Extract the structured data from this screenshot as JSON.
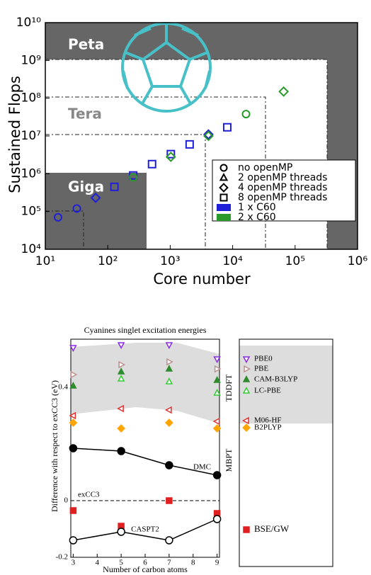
{
  "chart_data": [
    {
      "type": "scatter",
      "xscale": "log",
      "yscale": "log",
      "x_label": "Core number",
      "y_label": "Sustained Flops",
      "xlim": [
        10,
        1000000
      ],
      "ylim": [
        10000,
        10000000000
      ],
      "xticks": [
        {
          "value": 10,
          "label": "10¹"
        },
        {
          "value": 100,
          "label": "10²"
        },
        {
          "value": 1000,
          "label": "10³"
        },
        {
          "value": 10000,
          "label": "10⁴"
        },
        {
          "value": 100000,
          "label": "10⁵"
        },
        {
          "value": 1000000,
          "label": "10⁶"
        }
      ],
      "yticks": [
        {
          "value": 10000,
          "label": "10⁴"
        },
        {
          "value": 100000,
          "label": "10⁵"
        },
        {
          "value": 1000000,
          "label": "10⁶"
        },
        {
          "value": 10000000,
          "label": "10⁷"
        },
        {
          "value": 100000000,
          "label": "10⁸"
        },
        {
          "value": 1000000000,
          "label": "10⁹"
        },
        {
          "value": 10000000000,
          "label": "10¹⁰"
        }
      ],
      "annotations": [
        "Peta",
        "Tera",
        "Giga"
      ],
      "marker_legend": [
        {
          "label": "no openMP",
          "marker": "circle"
        },
        {
          "label": "2 openMP threads",
          "marker": "triangle"
        },
        {
          "label": "4 openMP threads",
          "marker": "diamond"
        },
        {
          "label": "8 openMP threads",
          "marker": "square"
        }
      ],
      "series": [
        {
          "name": "1 x C60",
          "color": "#1f1fd8",
          "x": [
            16,
            32,
            64,
            128,
            256,
            512,
            1024,
            2048,
            4096,
            8192
          ],
          "values": [
            70000,
            120000,
            230000,
            450000,
            900000,
            1800000,
            3300000,
            6000000,
            11000000,
            17000000
          ],
          "markers": [
            "circle",
            "circle",
            "diamond",
            "square",
            "square",
            "square",
            "square",
            "square",
            "diamond",
            "square"
          ]
        },
        {
          "name": "2 x C60",
          "color": "#2a9a2a",
          "x": [
            256,
            1024,
            4096,
            16384,
            65536
          ],
          "values": [
            800000,
            2800000,
            10000000,
            38000000,
            150000000
          ],
          "markers": [
            "circle",
            "diamond",
            "diamond",
            "circle",
            "diamond"
          ]
        }
      ]
    },
    {
      "type": "line",
      "title": "Cyanines singlet excitation energies",
      "x_label": "Number of carbon atoms",
      "y_label": "Difference with respect to exCC3 (eV)",
      "x": [
        3,
        5,
        7,
        9
      ],
      "xlim": [
        2.9,
        9.1
      ],
      "xticks": [
        3,
        4,
        5,
        6,
        7,
        8,
        9
      ],
      "ylim": [
        -0.2,
        0.57
      ],
      "yticks": [
        -0.2,
        0,
        0.4
      ],
      "reference_line": {
        "label": "exCC3",
        "value": 0
      },
      "legend_groups": [
        "TDDFT",
        "MBPT"
      ],
      "series": [
        {
          "name": "PBE0",
          "color": "#8a2be2",
          "marker": "triangle-down",
          "filled": false,
          "legend": true,
          "values": [
            0.54,
            0.55,
            0.55,
            0.5
          ]
        },
        {
          "name": "PBE",
          "color": "#bc8f8f",
          "marker": "triangle-right",
          "filled": false,
          "legend": true,
          "values": [
            0.445,
            0.48,
            0.49,
            0.465
          ]
        },
        {
          "name": "CAM-B3LYP",
          "color": "#2e8b2e",
          "marker": "triangle",
          "filled": true,
          "legend": true,
          "values": [
            0.405,
            0.455,
            0.465,
            0.425
          ]
        },
        {
          "name": "LC-PBE",
          "color": "#32cd32",
          "marker": "triangle",
          "filled": false,
          "legend": true,
          "values": [
            null,
            0.43,
            0.42,
            0.38
          ]
        },
        {
          "name": "M06-HF",
          "color": "#e03030",
          "marker": "triangle-left",
          "filled": false,
          "legend": true,
          "values": [
            0.3,
            0.325,
            0.32,
            0.28
          ]
        },
        {
          "name": "B2PLYP",
          "color": "#ffa500",
          "marker": "diamond",
          "filled": true,
          "legend": true,
          "values": [
            0.275,
            0.255,
            0.275,
            0.255
          ]
        },
        {
          "name": "DMC",
          "color": "#000000",
          "marker": "circle",
          "filled": true,
          "legend": false,
          "line": true,
          "values": [
            0.185,
            0.175,
            0.125,
            0.09
          ]
        },
        {
          "name": "BSE/GW",
          "color": "#e02020",
          "marker": "square",
          "filled": true,
          "legend": true,
          "values": [
            -0.035,
            -0.09,
            0,
            -0.045
          ]
        },
        {
          "name": "CASPT2",
          "color": "#000000",
          "marker": "circle",
          "filled": false,
          "legend": false,
          "line": true,
          "values": [
            -0.14,
            -0.11,
            -0.14,
            -0.065
          ]
        }
      ]
    }
  ]
}
